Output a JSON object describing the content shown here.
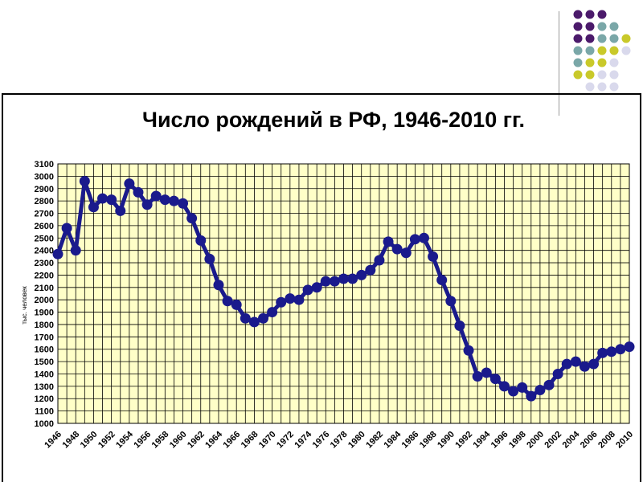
{
  "slide": {
    "decoration_colors": [
      "#4b1a6b",
      "#7aa7a8",
      "#c9c92a",
      "#d9d9ec"
    ]
  },
  "chart_data": {
    "type": "line",
    "title": "Число рождений в РФ, 1946-2010 гг.",
    "xlabel": "",
    "ylabel": "тыс. человек",
    "ylim": [
      1000,
      3100
    ],
    "ytick_step": 100,
    "grid": true,
    "plot_background": "#ffffc8",
    "line_color": "#1a1a8c",
    "x_tick_labels": [
      "1946",
      "1948",
      "1950",
      "1952",
      "1954",
      "1956",
      "1958",
      "1960",
      "1962",
      "1964",
      "1966",
      "1968",
      "1970",
      "1972",
      "1974",
      "1976",
      "1978",
      "1980",
      "1982",
      "1984",
      "1986",
      "1988",
      "1990",
      "1992",
      "1994",
      "1996",
      "1998",
      "2000",
      "2002",
      "2004",
      "2006",
      "2008",
      "2010"
    ],
    "series": [
      {
        "x": [
          1946,
          1947,
          1948,
          1949,
          1950,
          1951,
          1952,
          1953,
          1954,
          1955,
          1956,
          1957,
          1958,
          1959,
          1960,
          1961,
          1962,
          1963,
          1964,
          1965,
          1966,
          1967,
          1968,
          1969,
          1970,
          1971,
          1972,
          1973,
          1974,
          1975,
          1976,
          1977,
          1978,
          1979,
          1980,
          1981,
          1982,
          1983,
          1984,
          1985,
          1986,
          1987,
          1988,
          1989,
          1990,
          1991,
          1992,
          1993,
          1994,
          1995,
          1996,
          1997,
          1998,
          1999,
          2000,
          2001,
          2002,
          2003,
          2004,
          2005,
          2006,
          2007,
          2008,
          2009,
          2010
        ],
        "values": [
          2370,
          2580,
          2400,
          2960,
          2750,
          2820,
          2810,
          2720,
          2940,
          2870,
          2770,
          2840,
          2810,
          2800,
          2780,
          2660,
          2480,
          2330,
          2120,
          1990,
          1960,
          1850,
          1820,
          1850,
          1900,
          1980,
          2010,
          2000,
          2080,
          2100,
          2150,
          2150,
          2170,
          2170,
          2200,
          2240,
          2320,
          2470,
          2410,
          2380,
          2490,
          2500,
          2350,
          2160,
          1990,
          1790,
          1590,
          1380,
          1410,
          1360,
          1300,
          1260,
          1290,
          1220,
          1270,
          1310,
          1400,
          1480,
          1500,
          1460,
          1480,
          1570,
          1580,
          1600,
          1620
        ]
      }
    ]
  }
}
